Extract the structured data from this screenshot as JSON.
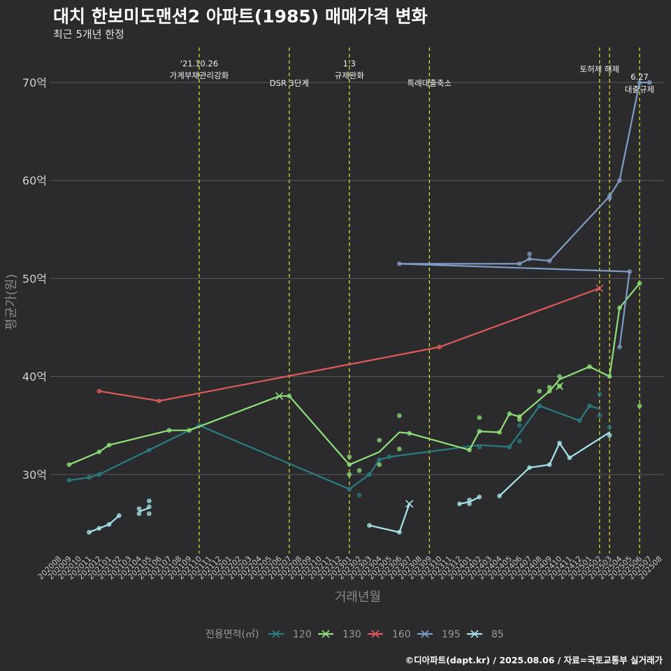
{
  "header": {
    "title": "대치 한보미도맨션2 아파트(1985) 매매가격 변화",
    "subtitle": "최근 5개년 한정"
  },
  "caption": "©디아파트(dapt.kr) / 2025.08.06 / 자료=국토교통부 실거래가",
  "chart_data": {
    "type": "line",
    "title": "대치 한보미도맨션2 아파트(1985) 매매가격 변화",
    "xlabel": "거래년월",
    "ylabel": "평균가(원)",
    "ylim": [
      22,
      73
    ],
    "y_ticks": [
      30,
      40,
      50,
      60,
      70
    ],
    "y_tick_labels": [
      "30억",
      "40억",
      "50억",
      "60억",
      "70억"
    ],
    "x_start": "202008",
    "x_end": "202508",
    "legend_title": "전용면적(㎡)",
    "legend_position": "bottom",
    "annotations": [
      {
        "x": "202110",
        "lines": [
          "'21.10.26",
          "가계부채관리강화"
        ],
        "level": "high"
      },
      {
        "x": "202207",
        "lines": [
          "DSR 3단계"
        ],
        "level": "low"
      },
      {
        "x": "202301",
        "lines": [
          "1.3",
          "규제완화"
        ],
        "level": "high"
      },
      {
        "x": "202309",
        "lines": [
          "특례대출축소"
        ],
        "level": "low"
      },
      {
        "x": "202502",
        "lines": [
          "토허제 해제"
        ],
        "level": "mid"
      },
      {
        "x": "202503",
        "lines": [],
        "level": "none"
      },
      {
        "x": "202506",
        "lines": [
          "6.27",
          "대출규제"
        ],
        "level": "low2"
      }
    ],
    "series": [
      {
        "name": "120",
        "color": "#2a7c80",
        "line": [
          [
            "202009",
            29.4
          ],
          [
            "202011",
            29.7
          ],
          [
            "202012",
            30.0
          ],
          [
            "202105",
            32.5
          ],
          [
            "202110",
            35.0
          ],
          [
            "202301",
            28.5
          ],
          [
            "202303",
            30.0
          ],
          [
            "202304",
            31.5
          ],
          [
            "202305",
            31.8
          ],
          [
            "202402",
            33.0
          ],
          [
            "202405",
            32.8
          ],
          [
            "202408",
            37.0
          ],
          [
            "202412",
            35.5
          ],
          [
            "202501",
            37.0
          ],
          [
            "202502",
            36.7
          ]
        ],
        "points": [
          [
            "202009",
            29.4
          ],
          [
            "202011",
            29.7
          ],
          [
            "202012",
            30.0
          ],
          [
            "202105",
            32.5
          ],
          [
            "202110",
            35.0
          ],
          [
            "202301",
            28.5
          ],
          [
            "202302",
            27.9
          ],
          [
            "202303",
            30.0
          ],
          [
            "202304",
            31.5
          ],
          [
            "202305",
            31.8
          ],
          [
            "202402",
            32.8
          ],
          [
            "202405",
            32.8
          ],
          [
            "202406",
            33.4
          ],
          [
            "202406",
            35.0
          ],
          [
            "202408",
            37.0
          ],
          [
            "202412",
            35.5
          ],
          [
            "202501",
            37.0
          ],
          [
            "202502",
            36.0
          ],
          [
            "202502",
            38.2
          ],
          [
            "202503",
            34.8
          ]
        ],
        "crosses": []
      },
      {
        "name": "130",
        "color": "#8fe07a",
        "line": [
          [
            "202009",
            31.0
          ],
          [
            "202012",
            32.3
          ],
          [
            "202101",
            33.0
          ],
          [
            "202107",
            34.5
          ],
          [
            "202109",
            34.5
          ],
          [
            "202206",
            38.0
          ],
          [
            "202207",
            38.0
          ],
          [
            "202301",
            31.0
          ],
          [
            "202304",
            32.3
          ],
          [
            "202306",
            34.3
          ],
          [
            "202307",
            34.2
          ],
          [
            "202401",
            32.5
          ],
          [
            "202402",
            34.4
          ],
          [
            "202404",
            34.3
          ],
          [
            "202405",
            36.2
          ],
          [
            "202406",
            35.9
          ],
          [
            "202409",
            38.5
          ],
          [
            "202410",
            39.7
          ],
          [
            "202501",
            41.0
          ],
          [
            "202503",
            40.0
          ],
          [
            "202504",
            47.0
          ],
          [
            "202506",
            49.5
          ]
        ],
        "points": [
          [
            "202009",
            31.0
          ],
          [
            "202012",
            32.3
          ],
          [
            "202101",
            33.0
          ],
          [
            "202107",
            34.5
          ],
          [
            "202109",
            34.5
          ],
          [
            "202207",
            38.0
          ],
          [
            "202301",
            31.0
          ],
          [
            "202301",
            31.8
          ],
          [
            "202301",
            30.0
          ],
          [
            "202302",
            30.4
          ],
          [
            "202304",
            31.0
          ],
          [
            "202304",
            33.5
          ],
          [
            "202306",
            36.0
          ],
          [
            "202306",
            32.6
          ],
          [
            "202307",
            34.2
          ],
          [
            "202401",
            32.5
          ],
          [
            "202402",
            35.8
          ],
          [
            "202402",
            34.4
          ],
          [
            "202404",
            34.3
          ],
          [
            "202405",
            36.2
          ],
          [
            "202406",
            35.9
          ],
          [
            "202406",
            35.6
          ],
          [
            "202408",
            38.5
          ],
          [
            "202409",
            38.5
          ],
          [
            "202409",
            38.9
          ],
          [
            "202410",
            39.0
          ],
          [
            "202410",
            40.0
          ],
          [
            "202501",
            41.0
          ],
          [
            "202503",
            40.0
          ],
          [
            "202504",
            47.0
          ],
          [
            "202506",
            49.5
          ],
          [
            "202506",
            37.0
          ]
        ],
        "crosses": [
          [
            "202206",
            38.0
          ],
          [
            "202410",
            39.0
          ]
        ]
      },
      {
        "name": "160",
        "color": "#e05a5a",
        "line": [
          [
            "202012",
            38.5
          ],
          [
            "202106",
            37.5
          ],
          [
            "202310",
            43.0
          ],
          [
            "202502",
            49.0
          ]
        ],
        "points": [
          [
            "202012",
            38.5
          ],
          [
            "202106",
            37.5
          ],
          [
            "202310",
            43.0
          ]
        ],
        "crosses": [
          [
            "202502",
            49.0
          ]
        ]
      },
      {
        "name": "195",
        "color": "#7f9cc4",
        "line": [
          [
            "202504",
            43.0
          ],
          [
            "202505",
            50.7
          ],
          [
            "202306",
            51.5
          ],
          [
            "202406",
            51.5
          ],
          [
            "202407",
            52.0
          ],
          [
            "202409",
            51.8
          ],
          [
            "202503",
            58.4
          ],
          [
            "202504",
            60.0
          ],
          [
            "202506",
            70.0
          ],
          [
            "202507",
            70.0
          ]
        ],
        "points": [
          [
            "202504",
            43.0
          ],
          [
            "202505",
            50.7
          ],
          [
            "202306",
            51.5
          ],
          [
            "202406",
            51.5
          ],
          [
            "202407",
            52.0
          ],
          [
            "202407",
            52.5
          ],
          [
            "202409",
            51.8
          ],
          [
            "202503",
            58.4
          ],
          [
            "202503",
            58.2
          ],
          [
            "202504",
            60.0
          ],
          [
            "202506",
            70.0
          ],
          [
            "202507",
            70.0
          ]
        ],
        "crosses": []
      },
      {
        "name": "85",
        "color": "#a8e8ec",
        "line": [],
        "segments": [
          [
            [
              "202011",
              24.1
            ],
            [
              "202012",
              24.5
            ],
            [
              "202101",
              24.9
            ],
            [
              "202102",
              25.8
            ]
          ],
          [
            [
              "202104",
              26.2
            ],
            [
              "202105",
              26.6
            ]
          ],
          [
            [
              "202303",
              24.8
            ],
            [
              "202306",
              24.1
            ],
            [
              "202307",
              27.0
            ]
          ],
          [
            [
              "202312",
              27.0
            ],
            [
              "202401",
              27.2
            ],
            [
              "202402",
              27.7
            ]
          ],
          [
            [
              "202404",
              27.8
            ],
            [
              "202407",
              30.7
            ],
            [
              "202409",
              31.0
            ],
            [
              "202410",
              33.2
            ],
            [
              "202411",
              31.7
            ],
            [
              "202503",
              34.3
            ]
          ]
        ],
        "points": [
          [
            "202011",
            24.1
          ],
          [
            "202012",
            24.5
          ],
          [
            "202101",
            24.9
          ],
          [
            "202102",
            25.8
          ],
          [
            "202104",
            26.5
          ],
          [
            "202104",
            26.0
          ],
          [
            "202105",
            26.7
          ],
          [
            "202105",
            27.3
          ],
          [
            "202105",
            26.0
          ],
          [
            "202303",
            24.8
          ],
          [
            "202306",
            24.1
          ],
          [
            "202312",
            27.0
          ],
          [
            "202401",
            27.4
          ],
          [
            "202401",
            27.0
          ],
          [
            "202402",
            27.7
          ],
          [
            "202404",
            27.8
          ],
          [
            "202407",
            30.7
          ],
          [
            "202409",
            31.0
          ],
          [
            "202410",
            33.2
          ],
          [
            "202411",
            31.7
          ],
          [
            "202503",
            34.0
          ]
        ],
        "crosses": [
          [
            "202307",
            27.0
          ]
        ]
      }
    ]
  }
}
